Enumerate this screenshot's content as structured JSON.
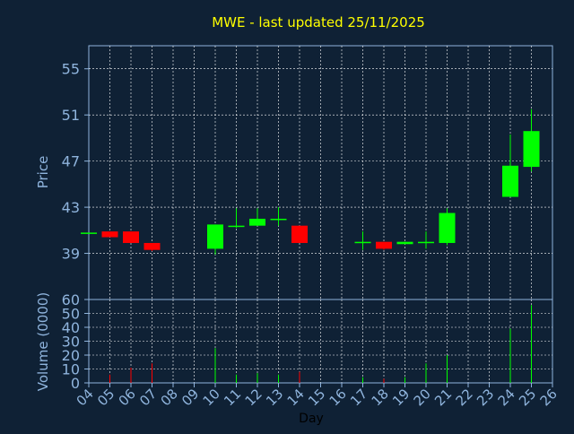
{
  "chart_data": {
    "type": "candlestick",
    "title": "MWE - last updated 25/11/2025",
    "xlabel": "Day",
    "price_panel": {
      "ylabel": "Price",
      "yticks": [
        39,
        43,
        47,
        51,
        55
      ],
      "ylim": [
        35,
        57
      ],
      "grid": true
    },
    "volume_panel": {
      "ylabel": "Volume (0000)",
      "yticks": [
        0,
        10,
        20,
        30,
        40,
        50,
        60
      ],
      "ylim": [
        0,
        60
      ],
      "grid": true
    },
    "x_ticks": [
      "04",
      "05",
      "06",
      "07",
      "08",
      "09",
      "10",
      "11",
      "12",
      "13",
      "14",
      "15",
      "16",
      "17",
      "18",
      "19",
      "20",
      "21",
      "22",
      "23",
      "24",
      "25",
      "26"
    ],
    "candles": [
      {
        "day": "04",
        "open": 40.8,
        "high": 40.8,
        "low": 40.8,
        "close": 40.8,
        "volume": 0
      },
      {
        "day": "05",
        "open": 40.9,
        "high": 40.9,
        "low": 40.4,
        "close": 40.4,
        "volume": 6
      },
      {
        "day": "06",
        "open": 40.9,
        "high": 40.9,
        "low": 39.9,
        "close": 39.9,
        "volume": 11
      },
      {
        "day": "07",
        "open": 39.9,
        "high": 39.9,
        "low": 39.2,
        "close": 39.3,
        "volume": 14
      },
      {
        "day": "10",
        "open": 39.4,
        "high": 41.5,
        "low": 38.9,
        "close": 41.5,
        "volume": 25
      },
      {
        "day": "11",
        "open": 41.3,
        "high": 42.9,
        "low": 41.2,
        "close": 41.4,
        "volume": 6
      },
      {
        "day": "12",
        "open": 41.4,
        "high": 42.9,
        "low": 41.4,
        "close": 42.0,
        "volume": 7
      },
      {
        "day": "13",
        "open": 41.9,
        "high": 43.0,
        "low": 41.4,
        "close": 42.0,
        "volume": 6
      },
      {
        "day": "14",
        "open": 41.4,
        "high": 41.4,
        "low": 39.9,
        "close": 39.9,
        "volume": 8
      },
      {
        "day": "17",
        "open": 39.9,
        "high": 40.9,
        "low": 39.3,
        "close": 40.0,
        "volume": 4
      },
      {
        "day": "18",
        "open": 40.0,
        "high": 40.0,
        "low": 39.3,
        "close": 39.4,
        "volume": 3
      },
      {
        "day": "19",
        "open": 39.8,
        "high": 40.0,
        "low": 39.8,
        "close": 40.0,
        "volume": 4
      },
      {
        "day": "20",
        "open": 39.9,
        "high": 40.9,
        "low": 39.4,
        "close": 40.0,
        "volume": 14
      },
      {
        "day": "21",
        "open": 39.9,
        "high": 42.9,
        "low": 39.7,
        "close": 42.5,
        "volume": 20
      },
      {
        "day": "24",
        "open": 43.9,
        "high": 49.3,
        "low": 43.9,
        "close": 46.6,
        "volume": 39
      },
      {
        "day": "25",
        "open": 46.5,
        "high": 51.5,
        "low": 46.1,
        "close": 49.6,
        "volume": 56
      }
    ],
    "colors": {
      "background": "#0f2135",
      "up": "#00ff00",
      "down": "#ff0000",
      "axis": "#8fb4dd",
      "tick_label": "#8fb4dd",
      "title": "#ffff00",
      "xlabel": "#000000",
      "grid": "#ffffff"
    }
  }
}
